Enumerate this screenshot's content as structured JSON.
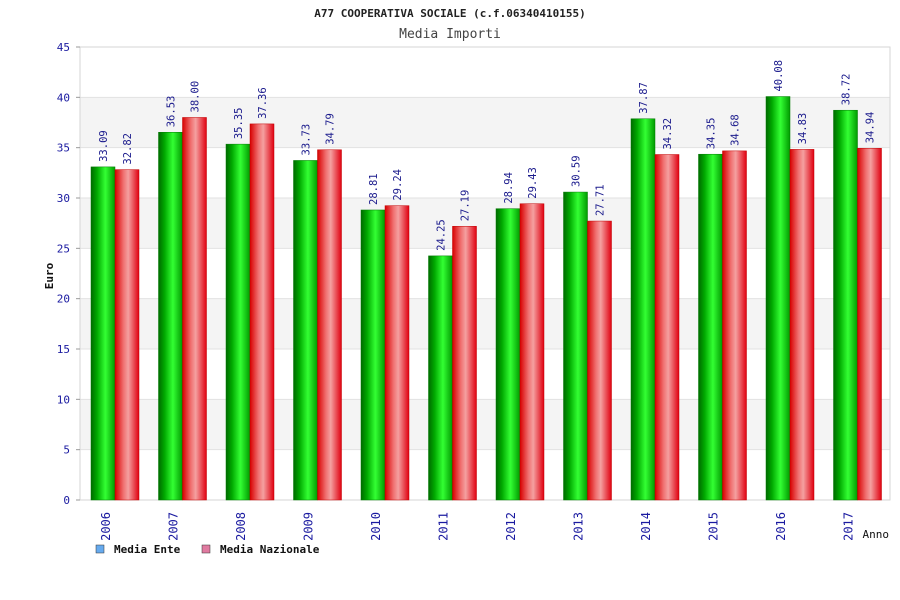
{
  "chart_data": {
    "type": "bar",
    "title": "A77 COOPERATIVA SOCIALE (c.f.06340410155)",
    "subtitle": "Media Importi",
    "xlabel": "Anno",
    "ylabel": "Euro",
    "ylim": [
      0,
      45
    ],
    "yticks": [
      "0",
      "5",
      "10",
      "15",
      "20",
      "25",
      "30",
      "35",
      "40",
      "45"
    ],
    "categories": [
      "2006",
      "2007",
      "2008",
      "2009",
      "2010",
      "2011",
      "2012",
      "2013",
      "2014",
      "2015",
      "2016",
      "2017"
    ],
    "series": [
      {
        "name": "Media Ente",
        "color": "#00c000",
        "legend_color": "#66aaee",
        "values": [
          33.09,
          36.53,
          35.35,
          33.73,
          28.81,
          24.25,
          28.94,
          30.59,
          37.87,
          34.35,
          40.08,
          38.72
        ],
        "labels": [
          "33.09",
          "36.53",
          "35.35",
          "33.73",
          "28.81",
          "24.25",
          "28.94",
          "30.59",
          "37.87",
          "34.35",
          "40.08",
          "38.72"
        ]
      },
      {
        "name": "Media Nazionale",
        "color": "#ee0000",
        "legend_color": "#e07aa0",
        "values": [
          32.82,
          38.0,
          37.36,
          34.79,
          29.24,
          27.19,
          29.43,
          27.71,
          34.32,
          34.68,
          34.83,
          34.94
        ],
        "labels": [
          "32.82",
          "38.00",
          "37.36",
          "34.79",
          "29.24",
          "27.19",
          "29.43",
          "27.71",
          "34.32",
          "34.68",
          "34.83",
          "34.94"
        ]
      }
    ],
    "grid": true,
    "legend": "bottom-left"
  }
}
